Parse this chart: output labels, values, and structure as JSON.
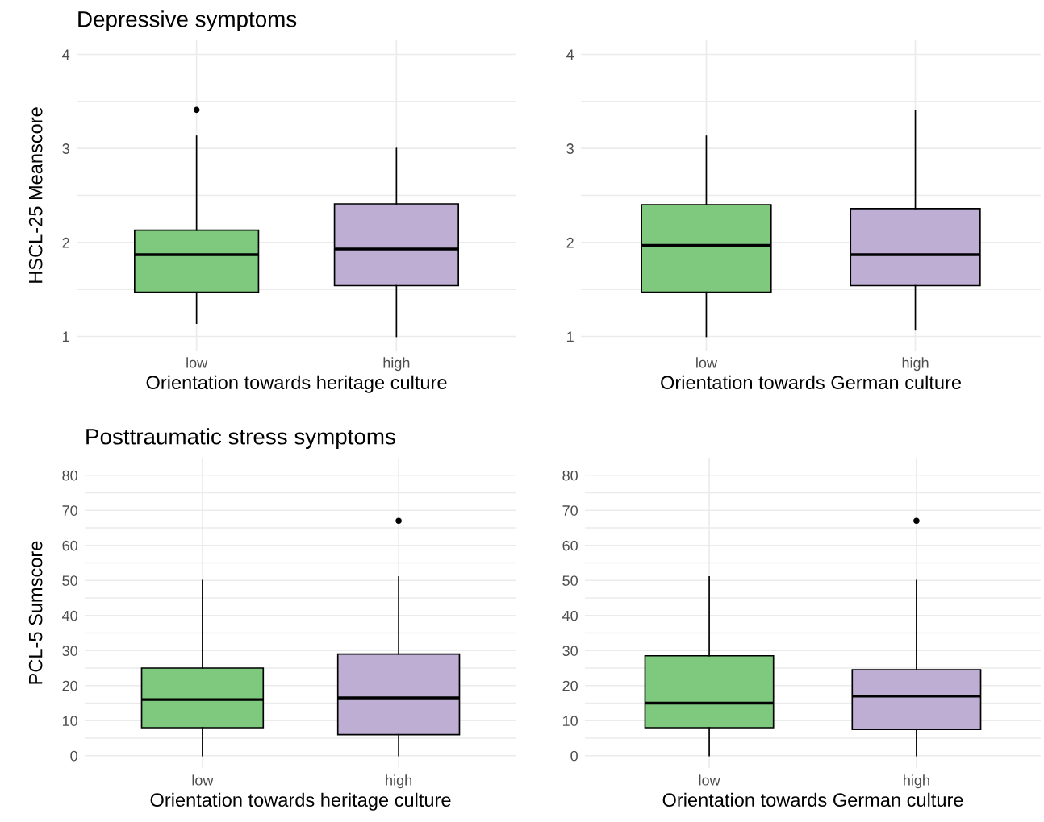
{
  "chart_data": [
    {
      "type": "box",
      "title": "Depressive symptoms",
      "ylabel": "HSCL-25 Meanscore",
      "xlabel": "Orientation towards heritage culture",
      "categories": [
        "low",
        "high"
      ],
      "colors": [
        "#7fc97f",
        "#beaed4"
      ],
      "ylim": [
        0.85,
        4.15
      ],
      "yticks": [
        {
          "value": 1,
          "label": "1"
        },
        {
          "value": 1.5,
          "label": null
        },
        {
          "value": 2,
          "label": "2"
        },
        {
          "value": 2.5,
          "label": null
        },
        {
          "value": 3,
          "label": "3"
        },
        {
          "value": 3.5,
          "label": null
        },
        {
          "value": 4,
          "label": "4"
        }
      ],
      "grid": true,
      "boxes": [
        {
          "low": 1.14,
          "q1": 1.47,
          "median": 1.87,
          "q3": 2.13,
          "high": 3.13,
          "outliers": [
            3.41
          ]
        },
        {
          "low": 1.0,
          "q1": 1.54,
          "median": 1.93,
          "q3": 2.41,
          "high": 3.0
        }
      ]
    },
    {
      "type": "box",
      "xlabel": "Orientation towards German culture",
      "categories": [
        "low",
        "high"
      ],
      "colors": [
        "#7fc97f",
        "#beaed4"
      ],
      "ylim": [
        0.85,
        4.15
      ],
      "yticks": [
        {
          "value": 1,
          "label": "1"
        },
        {
          "value": 1.5,
          "label": null
        },
        {
          "value": 2,
          "label": "2"
        },
        {
          "value": 2.5,
          "label": null
        },
        {
          "value": 3,
          "label": "3"
        },
        {
          "value": 3.5,
          "label": null
        },
        {
          "value": 4,
          "label": "4"
        }
      ],
      "grid": true,
      "boxes": [
        {
          "low": 1.0,
          "q1": 1.47,
          "median": 1.97,
          "q3": 2.4,
          "high": 3.13
        },
        {
          "low": 1.07,
          "q1": 1.54,
          "median": 1.87,
          "q3": 2.36,
          "high": 3.4
        }
      ]
    },
    {
      "type": "box",
      "title": "Posttraumatic stress symptoms",
      "ylabel": "PCL-5 Sumscore",
      "xlabel": "Orientation towards heritage culture",
      "categories": [
        "low",
        "high"
      ],
      "colors": [
        "#7fc97f",
        "#beaed4"
      ],
      "ylim": [
        -3.5,
        85
      ],
      "yticks": [
        0,
        {
          "value": 5,
          "label": null
        },
        10,
        {
          "value": 15,
          "label": null
        },
        20,
        {
          "value": 25,
          "label": null
        },
        30,
        {
          "value": 35,
          "label": null
        },
        40,
        {
          "value": 45,
          "label": null
        },
        50,
        {
          "value": 55,
          "label": null
        },
        60,
        {
          "value": 65,
          "label": null
        },
        70,
        {
          "value": 75,
          "label": null
        },
        80
      ],
      "grid": true,
      "boxes": [
        {
          "low": 0,
          "q1": 8,
          "median": 16,
          "q3": 25,
          "high": 50
        },
        {
          "low": 0,
          "q1": 6,
          "median": 16.5,
          "q3": 29,
          "high": 51,
          "outliers": [
            67
          ]
        }
      ]
    },
    {
      "type": "box",
      "xlabel": "Orientation towards German culture",
      "categories": [
        "low",
        "high"
      ],
      "colors": [
        "#7fc97f",
        "#beaed4"
      ],
      "ylim": [
        -3.5,
        85
      ],
      "yticks": [
        0,
        {
          "value": 5,
          "label": null
        },
        10,
        {
          "value": 15,
          "label": null
        },
        20,
        {
          "value": 25,
          "label": null
        },
        30,
        {
          "value": 35,
          "label": null
        },
        40,
        {
          "value": 45,
          "label": null
        },
        50,
        {
          "value": 55,
          "label": null
        },
        60,
        {
          "value": 65,
          "label": null
        },
        70,
        {
          "value": 75,
          "label": null
        },
        80
      ],
      "grid": true,
      "boxes": [
        {
          "low": 0,
          "q1": 8,
          "median": 15,
          "q3": 28.5,
          "high": 51
        },
        {
          "low": 0,
          "q1": 7.5,
          "median": 17,
          "q3": 24.5,
          "high": 50,
          "outliers": [
            67
          ]
        }
      ]
    }
  ]
}
